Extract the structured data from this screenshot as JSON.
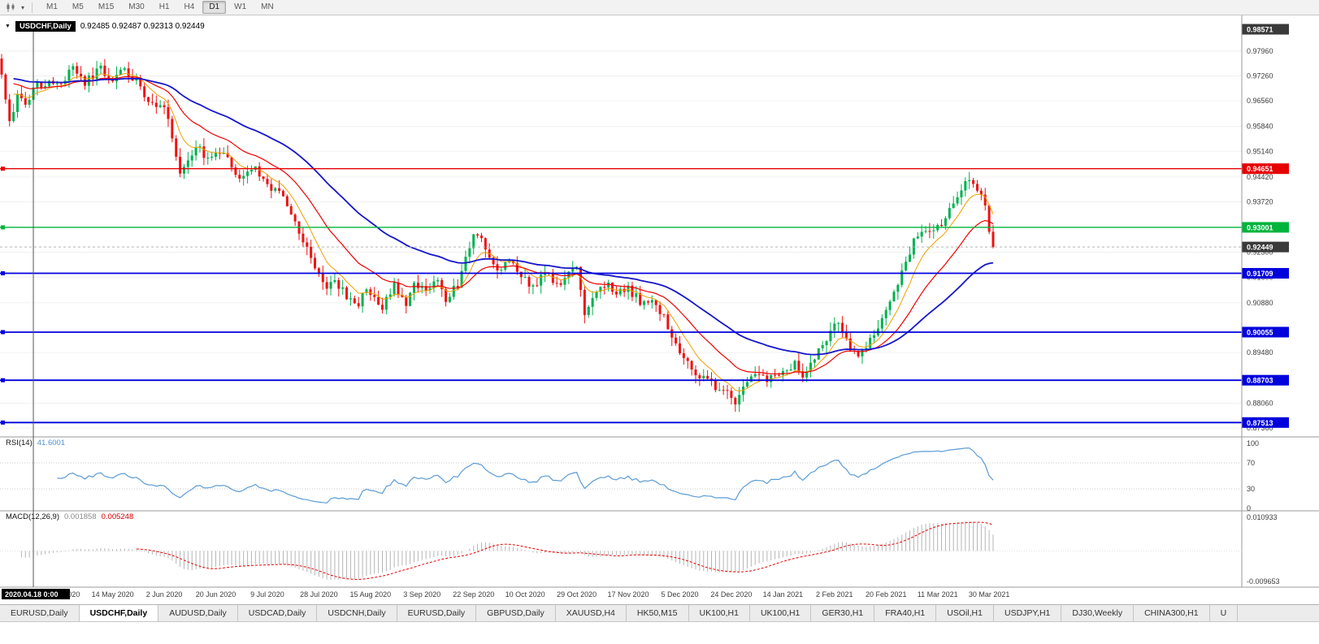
{
  "toolbar": {
    "timeframes": [
      "M1",
      "M5",
      "M15",
      "M30",
      "H1",
      "H4",
      "D1",
      "W1",
      "MN"
    ],
    "active_timeframe": "D1"
  },
  "chart": {
    "symbol_label": "USDCHF,Daily",
    "ohlc": "0.92485 0.92487 0.92313 0.92449"
  },
  "rsi": {
    "label": "RSI(14)",
    "value": "41.6001"
  },
  "macd": {
    "label": "MACD(12,26,9)",
    "value_main": "0.001858",
    "value_signal": "0.005248"
  },
  "tabs": {
    "active_index": 1,
    "items": [
      "EURUSD,Daily",
      "USDCHF,Daily",
      "AUDUSD,Daily",
      "USDCAD,Daily",
      "USDCNH,Daily",
      "EURUSD,Daily",
      "GBPUSD,Daily",
      "XAUUSD,H4",
      "HK50,M15",
      "UK100,H1",
      "UK100,H1",
      "GER30,H1",
      "FRA40,H1",
      "USOil,H1",
      "USDJPY,H1",
      "DJ30,Weekly",
      "CHINA300,H1",
      "U"
    ]
  },
  "chart_data": {
    "type": "candlestick",
    "symbol": "USDCHF",
    "timeframe": "Daily",
    "num_bars": 251,
    "current_price": 0.92449,
    "bid_label": "0.92449",
    "price_top": 0.988,
    "price_bottom": 0.872,
    "axis_top_label": "0.98571",
    "axis_labels": [
      0.9796,
      0.9726,
      0.9656,
      0.9584,
      0.9514,
      0.9442,
      0.9372,
      0.923,
      0.916,
      0.9088,
      0.8948,
      0.8806,
      0.8736
    ],
    "hlines": [
      {
        "price": 0.94651,
        "color": "#e60000",
        "label": "0.94651",
        "w": 1.4
      },
      {
        "price": 0.93001,
        "color": "#00b43c",
        "label": "0.93001",
        "w": 1.4
      },
      {
        "price": 0.91709,
        "color": "#0000dc",
        "label": "0.91709",
        "w": 1.8
      },
      {
        "price": 0.90055,
        "color": "#0000dc",
        "label": "0.90055",
        "w": 1.8
      },
      {
        "price": 0.88703,
        "color": "#0000dc",
        "label": "0.88703",
        "w": 1.8
      },
      {
        "price": 0.87513,
        "color": "#0000dc",
        "label": "0.87513",
        "w": 1.8
      }
    ],
    "crosshair": {
      "index": 8,
      "date": "2020.04.18 0:00"
    },
    "date_labels": [
      {
        "i": 16,
        "t": "Apr 2020"
      },
      {
        "i": 28,
        "t": "14 May 2020"
      },
      {
        "i": 41,
        "t": "2 Jun 2020"
      },
      {
        "i": 54,
        "t": "20 Jun 2020"
      },
      {
        "i": 67,
        "t": "9 Jul 2020"
      },
      {
        "i": 80,
        "t": "28 Jul 2020"
      },
      {
        "i": 93,
        "t": "15 Aug 2020"
      },
      {
        "i": 106,
        "t": "3 Sep 2020"
      },
      {
        "i": 119,
        "t": "22 Sep 2020"
      },
      {
        "i": 132,
        "t": "10 Oct 2020"
      },
      {
        "i": 145,
        "t": "29 Oct 2020"
      },
      {
        "i": 158,
        "t": "17 Nov 2020"
      },
      {
        "i": 171,
        "t": "5 Dec 2020"
      },
      {
        "i": 184,
        "t": "24 Dec 2020"
      },
      {
        "i": 197,
        "t": "14 Jan 2021"
      },
      {
        "i": 210,
        "t": "2 Feb 2021"
      },
      {
        "i": 223,
        "t": "20 Feb 2021"
      },
      {
        "i": 236,
        "t": "11 Mar 2021"
      },
      {
        "i": 249,
        "t": "30 Mar 2021"
      }
    ],
    "waypoints": [
      [
        0,
        0.973
      ],
      [
        2,
        0.96
      ],
      [
        4,
        0.9665
      ],
      [
        6,
        0.964
      ],
      [
        8,
        0.969
      ],
      [
        12,
        0.9715
      ],
      [
        15,
        0.9695
      ],
      [
        18,
        0.975
      ],
      [
        21,
        0.9705
      ],
      [
        25,
        0.9745
      ],
      [
        28,
        0.9715
      ],
      [
        31,
        0.9742
      ],
      [
        34,
        0.9708
      ],
      [
        37,
        0.966
      ],
      [
        41,
        0.964
      ],
      [
        43,
        0.956
      ],
      [
        45,
        0.9445
      ],
      [
        47,
        0.949
      ],
      [
        49,
        0.9525
      ],
      [
        52,
        0.9495
      ],
      [
        55,
        0.9512
      ],
      [
        58,
        0.9478
      ],
      [
        60,
        0.944
      ],
      [
        63,
        0.9468
      ],
      [
        66,
        0.9448
      ],
      [
        68,
        0.9408
      ],
      [
        71,
        0.9382
      ],
      [
        74,
        0.932
      ],
      [
        77,
        0.9242
      ],
      [
        80,
        0.9165
      ],
      [
        82,
        0.9118
      ],
      [
        84,
        0.9158
      ],
      [
        87,
        0.9102
      ],
      [
        90,
        0.9085
      ],
      [
        92,
        0.913
      ],
      [
        94,
        0.9108
      ],
      [
        96,
        0.9072
      ],
      [
        99,
        0.9138
      ],
      [
        102,
        0.9092
      ],
      [
        104,
        0.9148
      ],
      [
        107,
        0.9118
      ],
      [
        110,
        0.9162
      ],
      [
        112,
        0.9098
      ],
      [
        115,
        0.9142
      ],
      [
        118,
        0.9252
      ],
      [
        120,
        0.9288
      ],
      [
        122,
        0.9232
      ],
      [
        125,
        0.9182
      ],
      [
        128,
        0.9212
      ],
      [
        131,
        0.9158
      ],
      [
        134,
        0.9132
      ],
      [
        137,
        0.918
      ],
      [
        140,
        0.9132
      ],
      [
        143,
        0.9172
      ],
      [
        145,
        0.9195
      ],
      [
        147,
        0.9042
      ],
      [
        150,
        0.9122
      ],
      [
        153,
        0.9146
      ],
      [
        155,
        0.9108
      ],
      [
        158,
        0.9128
      ],
      [
        161,
        0.9092
      ],
      [
        165,
        0.9088
      ],
      [
        168,
        0.9022
      ],
      [
        171,
        0.8938
      ],
      [
        174,
        0.8908
      ],
      [
        177,
        0.8872
      ],
      [
        180,
        0.8852
      ],
      [
        183,
        0.8828
      ],
      [
        185,
        0.8792
      ],
      [
        187,
        0.8858
      ],
      [
        190,
        0.8882
      ],
      [
        193,
        0.8866
      ],
      [
        197,
        0.8896
      ],
      [
        200,
        0.8922
      ],
      [
        202,
        0.8882
      ],
      [
        206,
        0.8952
      ],
      [
        209,
        0.9002
      ],
      [
        211,
        0.9042
      ],
      [
        213,
        0.8978
      ],
      [
        216,
        0.8938
      ],
      [
        219,
        0.8978
      ],
      [
        222,
        0.904
      ],
      [
        224,
        0.9082
      ],
      [
        227,
        0.9168
      ],
      [
        230,
        0.9262
      ],
      [
        232,
        0.9298
      ],
      [
        235,
        0.9288
      ],
      [
        238,
        0.9322
      ],
      [
        241,
        0.9388
      ],
      [
        244,
        0.9438
      ],
      [
        246,
        0.9415
      ],
      [
        248,
        0.9352
      ],
      [
        250,
        0.9245
      ]
    ],
    "ma": {
      "fast_period": 8,
      "mid_period": 21,
      "slow_period": 50,
      "fast_color": "#f0a000",
      "mid_color": "#f00000",
      "slow_color": "#1515cc"
    },
    "rsi_panel": {
      "period": 14,
      "levels": [
        100,
        70,
        30,
        0
      ]
    },
    "macd_panel": {
      "fast": 12,
      "slow": 26,
      "signal": 9,
      "scale_top": 0.010933,
      "scale_bottom": -0.009653,
      "top_label": "0.010933",
      "bottom_label": "-0.009653"
    },
    "colors": {
      "up": "#00b050",
      "down": "#ee1111",
      "rsi_line": "#5b9bd5",
      "macd_hist": "#b5b5b5",
      "macd_signal": "#e80000"
    }
  }
}
